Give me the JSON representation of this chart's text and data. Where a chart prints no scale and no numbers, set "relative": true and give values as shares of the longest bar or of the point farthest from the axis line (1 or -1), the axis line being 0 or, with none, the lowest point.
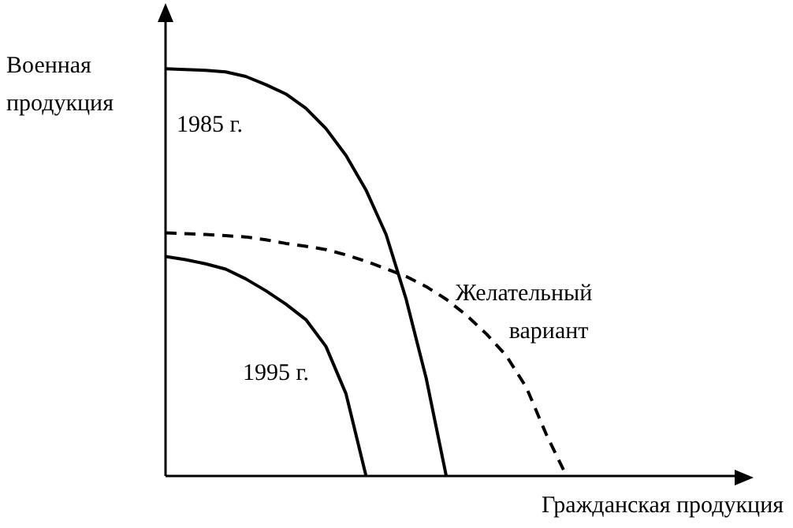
{
  "chart_data": {
    "type": "line",
    "relative": true,
    "xlabel": "Гражданская продукция",
    "ylabel": "Военная продукция",
    "marker": "none",
    "categories": [
      null,
      null,
      null,
      null,
      null,
      null,
      null,
      null,
      null,
      null,
      null,
      null,
      null,
      null,
      null,
      null,
      null,
      null,
      null,
      null,
      null,
      null,
      null,
      null,
      null,
      null,
      null,
      null,
      null
    ],
    "series": [
      {
        "name": "1985 г.",
        "color": "#000000",
        "line_style": "solid",
        "values": [
          1,
          0.998,
          0.996,
          0.992,
          0.981,
          0.961,
          0.938,
          0.903,
          0.853,
          0.787,
          0.702,
          0.593,
          0.434,
          0.24,
          0,
          null,
          null,
          null,
          null,
          null,
          null,
          null,
          null,
          null,
          null,
          null,
          null,
          null,
          null
        ]
      },
      {
        "name": "Желательный вариант",
        "color": "#000000",
        "line_style": "dashed",
        "values": [
          0.597,
          0.595,
          0.593,
          0.59,
          0.587,
          0.58,
          0.571,
          0.564,
          0.556,
          0.543,
          0.527,
          0.509,
          0.49,
          0.465,
          0.434,
          0.395,
          0.349,
          0.295,
          0.217,
          0.101,
          0,
          null,
          null,
          null,
          null,
          null,
          null,
          null,
          null
        ]
      },
      {
        "name": "1995 г.",
        "color": "#000000",
        "line_style": "solid",
        "values": [
          0.539,
          0.531,
          0.521,
          0.508,
          0.484,
          0.455,
          0.422,
          0.384,
          0.318,
          0.202,
          0,
          null,
          null,
          null,
          null,
          null,
          null,
          null,
          null,
          null,
          null,
          null,
          null,
          null,
          null,
          null,
          null,
          null,
          null
        ]
      }
    ]
  }
}
